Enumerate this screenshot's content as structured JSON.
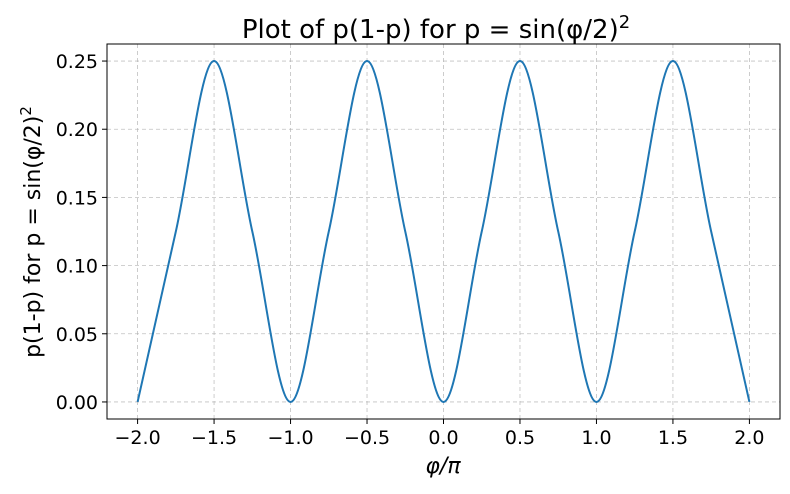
{
  "chart_data": {
    "type": "line",
    "title": "Plot of p(1-p) for p = sin(φ/2)",
    "title_superscript": "2",
    "xlabel": "φ/π",
    "ylabel": "p(1-p) for p = sin(φ/2)",
    "ylabel_superscript": "2",
    "xlim": [
      -2.2,
      2.2
    ],
    "ylim": [
      -0.0125,
      0.2625
    ],
    "x_ticks": [
      -2.0,
      -1.5,
      -1.0,
      -0.5,
      0.0,
      0.5,
      1.0,
      1.5,
      2.0
    ],
    "x_tick_labels": [
      "−2.0",
      "−1.5",
      "−1.0",
      "−0.5",
      "0.0",
      "0.5",
      "1.0",
      "1.5",
      "2.0"
    ],
    "y_ticks": [
      0.0,
      0.05,
      0.1,
      0.15,
      0.2,
      0.25
    ],
    "y_tick_labels": [
      "0.00",
      "0.05",
      "0.10",
      "0.15",
      "0.20",
      "0.25"
    ],
    "grid": true,
    "grid_style": "dashed",
    "series": [
      {
        "color": "#1f77b4",
        "x": [
          -2.0,
          -1.75,
          -1.5,
          -1.25,
          -1.0,
          -0.75,
          -0.5,
          -0.25,
          0.0,
          0.25,
          0.5,
          0.75,
          1.0,
          1.25,
          1.5,
          1.75,
          2.0
        ],
        "y": [
          0.0,
          0.125,
          0.25,
          0.125,
          0.0,
          0.125,
          0.25,
          0.125,
          0.0,
          0.125,
          0.25,
          0.125,
          0.0,
          0.125,
          0.25,
          0.125,
          0.0
        ]
      }
    ]
  }
}
